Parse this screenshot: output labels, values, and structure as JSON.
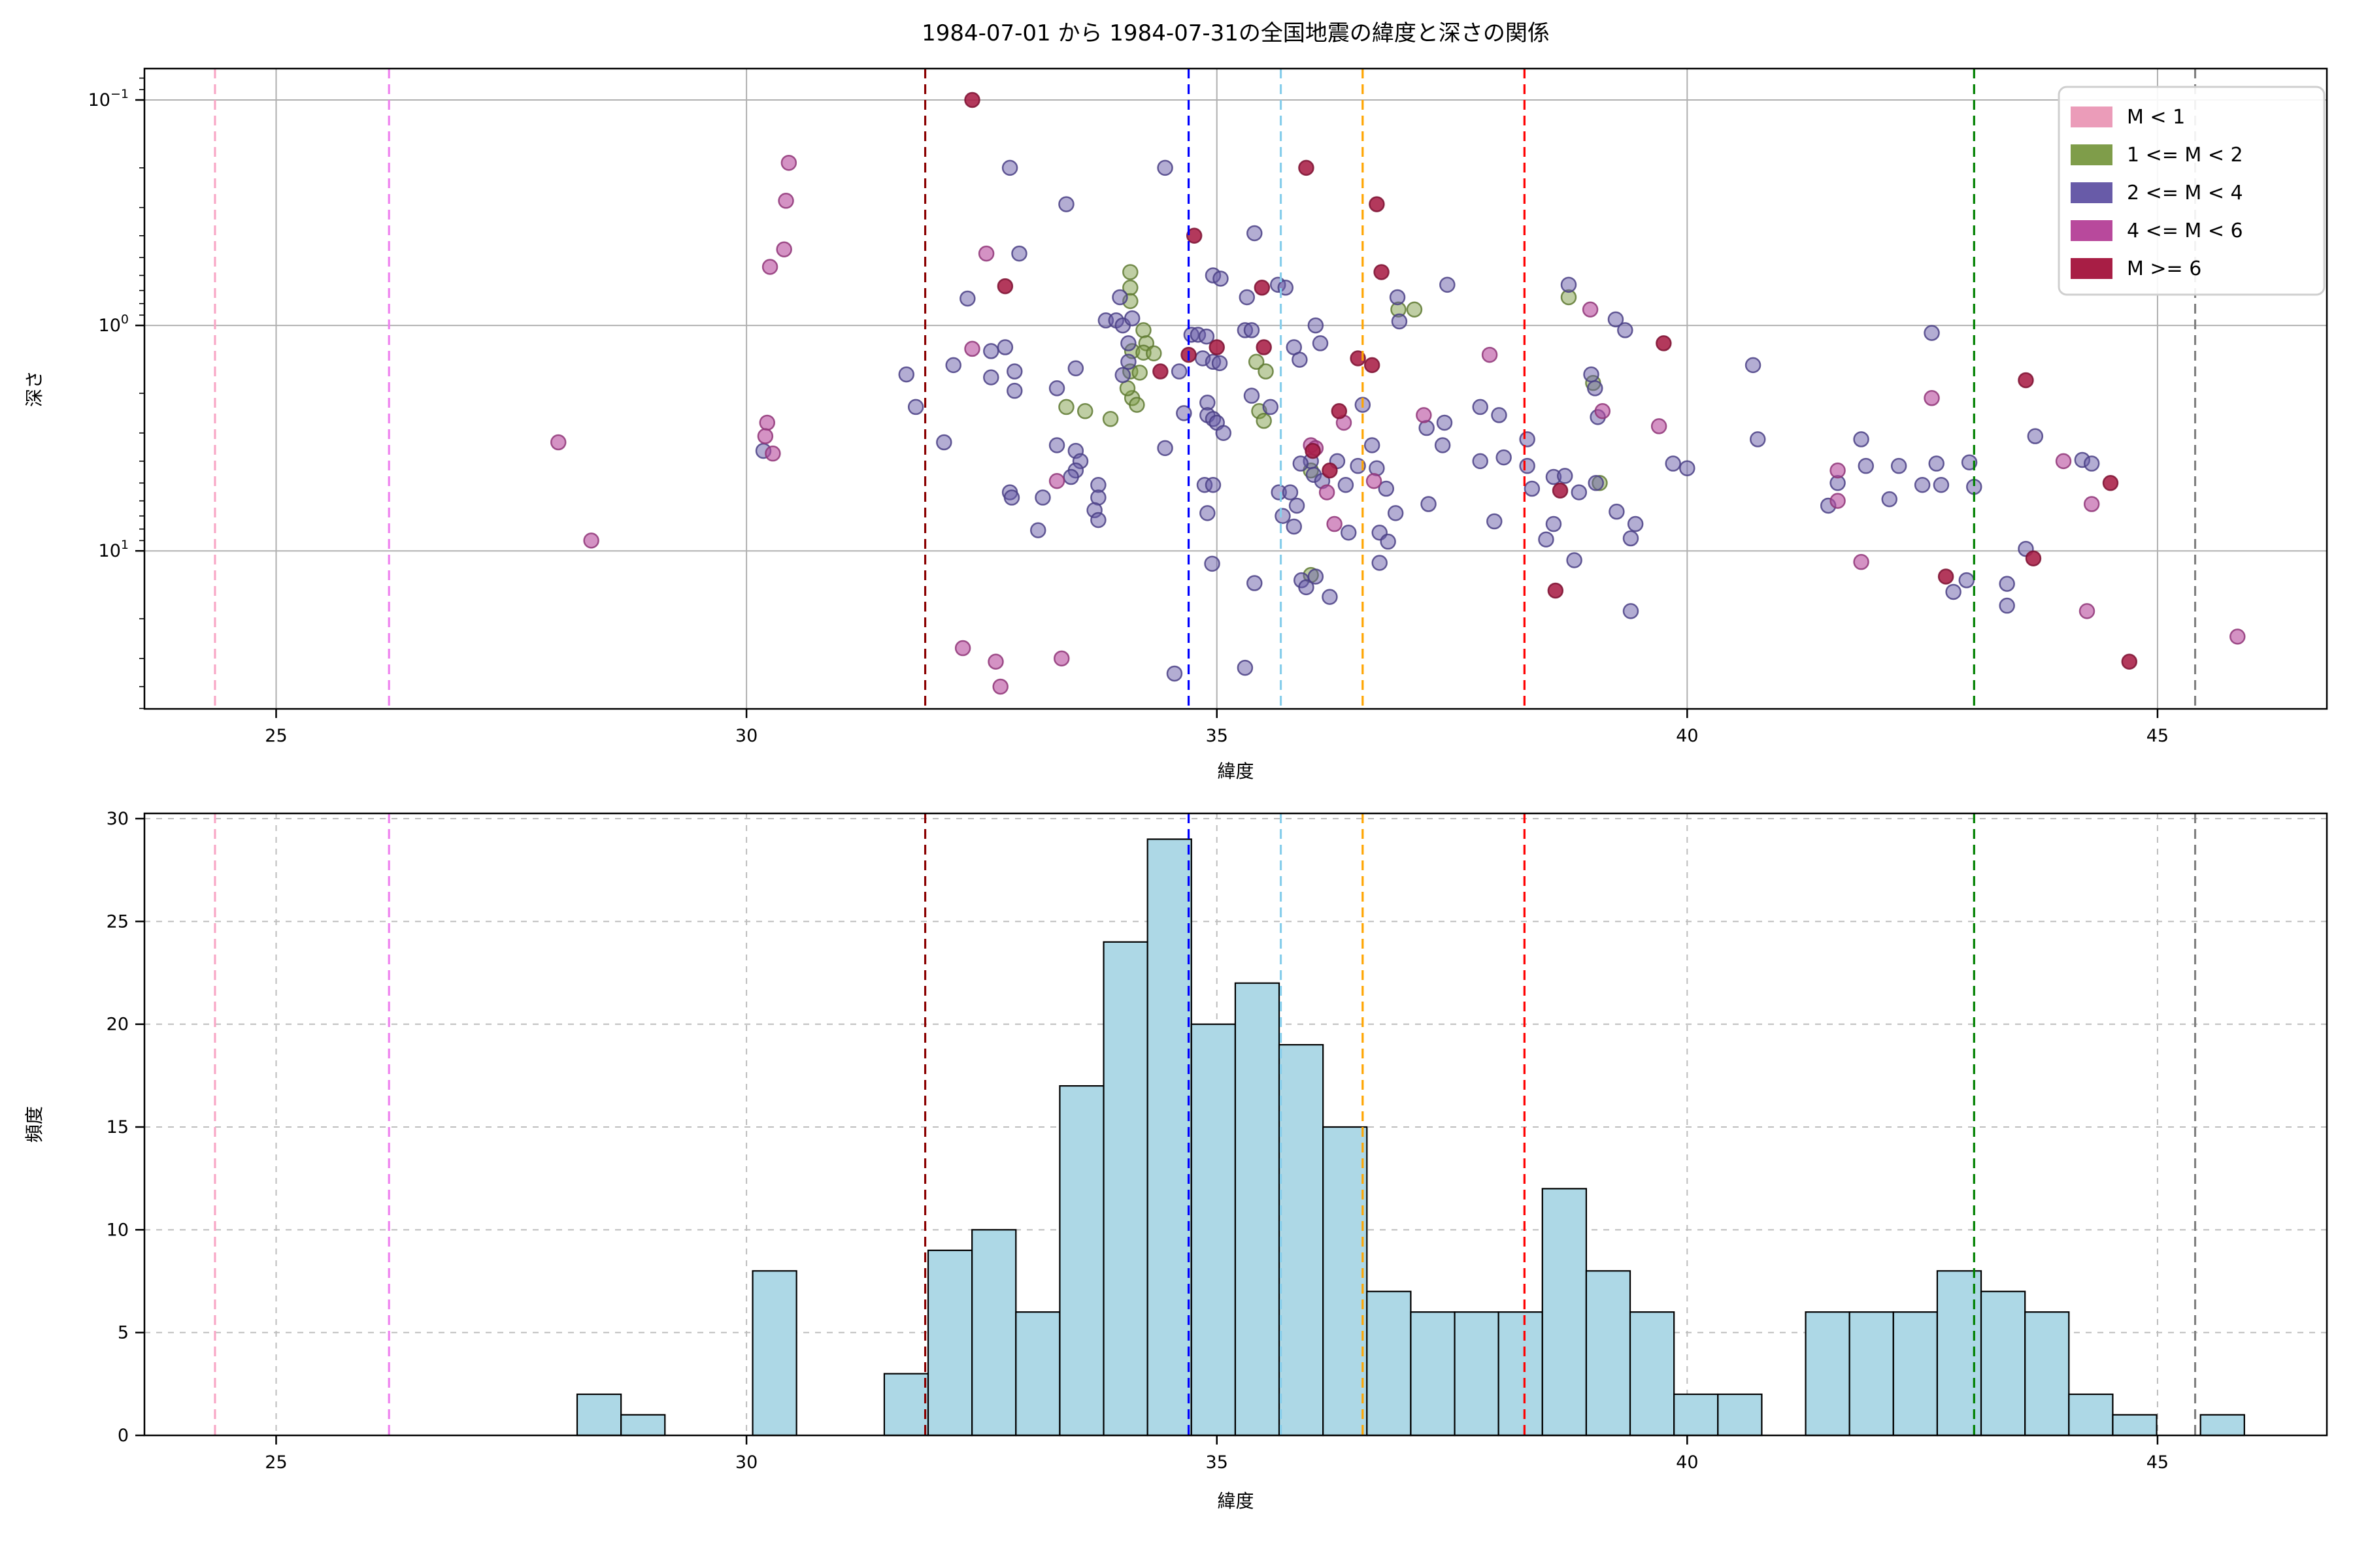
{
  "figure": {
    "title": "1984-07-01 から 1984-07-31の全国地震の緯度と深さの関係",
    "background": "#ffffff",
    "frame_color": "#000000",
    "grid_color_top": "#b0b0b0",
    "grid_color_bottom": "#bdbdbd"
  },
  "magnitude_classes": [
    {
      "label": "M < 1",
      "color": "#eb9cb9",
      "edge": "#d67fa4",
      "fill_opacity": 0.55
    },
    {
      "label": "1 <= M < 2",
      "color": "#7f9d4a",
      "edge": "#5f7a33",
      "fill_opacity": 0.5
    },
    {
      "label": "2 <= M < 4",
      "color": "#685ba8",
      "edge": "#4a3f85",
      "fill_opacity": 0.5
    },
    {
      "label": "4 <= M < 6",
      "color": "#b8499c",
      "edge": "#8f3578",
      "fill_opacity": 0.6
    },
    {
      "label": "M >= 6",
      "color": "#a81e45",
      "edge": "#7d1031",
      "fill_opacity": 0.88
    }
  ],
  "reference_lines": [
    {
      "lat": 24.35,
      "color": "#f8a8c6",
      "name": "pink-line"
    },
    {
      "lat": 26.2,
      "color": "#ee82ee",
      "name": "violet-line"
    },
    {
      "lat": 31.9,
      "color": "#8b0000",
      "name": "darkred-line"
    },
    {
      "lat": 34.7,
      "color": "#0000ff",
      "name": "blue-line"
    },
    {
      "lat": 35.68,
      "color": "#87ceeb",
      "name": "skyblue-line"
    },
    {
      "lat": 36.55,
      "color": "#ffa500",
      "name": "orange-line"
    },
    {
      "lat": 38.27,
      "color": "#ff0000",
      "name": "red-line"
    },
    {
      "lat": 43.05,
      "color": "#008000",
      "name": "green-line"
    },
    {
      "lat": 45.4,
      "color": "#808080",
      "name": "gray-line"
    }
  ],
  "chart_data": [
    {
      "type": "scatter",
      "title": "1984-07-01 から 1984-07-31の全国地震の緯度と深さの関係",
      "xlabel": "緯度",
      "ylabel": "深さ",
      "xlim": [
        23.6,
        46.8
      ],
      "xticks": [
        25,
        30,
        35,
        40,
        45
      ],
      "ylog_lim": [
        0.0726,
        50.2
      ],
      "yticks": [
        {
          "value": 0.1,
          "base": "10",
          "exp": "−1"
        },
        {
          "value": 1,
          "base": "10",
          "exp": "0"
        },
        {
          "value": 10,
          "base": "10",
          "exp": "1"
        }
      ],
      "y_axis_inverted_depth": true,
      "grid": "solid",
      "legend_position": "upper-right",
      "marker_radius": 11,
      "points_format": [
        "lat",
        "depth",
        "class_index"
      ],
      "points": [
        [
          28.0,
          3.3,
          3
        ],
        [
          28.35,
          9.0,
          3
        ],
        [
          30.45,
          0.19,
          3
        ],
        [
          30.42,
          0.28,
          3
        ],
        [
          30.4,
          0.46,
          3
        ],
        [
          30.25,
          0.55,
          3
        ],
        [
          30.22,
          2.7,
          3
        ],
        [
          30.2,
          3.1,
          3
        ],
        [
          30.18,
          3.6,
          2
        ],
        [
          30.28,
          3.7,
          3
        ],
        [
          32.4,
          0.1,
          4
        ],
        [
          32.8,
          0.2,
          2
        ],
        [
          32.55,
          0.48,
          3
        ],
        [
          32.9,
          0.48,
          2
        ],
        [
          32.75,
          0.67,
          4
        ],
        [
          32.35,
          0.76,
          2
        ],
        [
          32.4,
          1.27,
          3
        ],
        [
          32.75,
          1.25,
          2
        ],
        [
          31.7,
          1.65,
          2
        ],
        [
          32.2,
          1.5,
          2
        ],
        [
          31.8,
          2.3,
          2
        ],
        [
          32.1,
          3.3,
          2
        ],
        [
          32.8,
          5.5,
          2
        ],
        [
          32.82,
          5.8,
          2
        ],
        [
          33.1,
          8.1,
          2
        ],
        [
          32.6,
          1.3,
          2
        ],
        [
          32.6,
          1.7,
          2
        ],
        [
          32.85,
          1.6,
          2
        ],
        [
          32.85,
          1.95,
          2
        ],
        [
          32.3,
          27,
          3
        ],
        [
          32.65,
          31,
          3
        ],
        [
          32.7,
          40,
          3
        ],
        [
          33.35,
          30,
          3
        ],
        [
          33.4,
          0.29,
          2
        ],
        [
          33.3,
          3.4,
          2
        ],
        [
          33.5,
          3.6,
          2
        ],
        [
          33.55,
          4.0,
          2
        ],
        [
          33.5,
          4.4,
          2
        ],
        [
          33.45,
          4.7,
          2
        ],
        [
          33.3,
          4.9,
          3
        ],
        [
          33.15,
          5.8,
          2
        ],
        [
          33.74,
          5.1,
          2
        ],
        [
          33.74,
          5.8,
          2
        ],
        [
          33.7,
          6.6,
          2
        ],
        [
          33.74,
          7.3,
          2
        ],
        [
          33.5,
          1.55,
          2
        ],
        [
          33.3,
          1.9,
          2
        ],
        [
          33.4,
          2.3,
          1
        ],
        [
          33.6,
          2.4,
          1
        ],
        [
          33.87,
          2.6,
          1
        ],
        [
          34.1,
          2.1,
          1
        ],
        [
          34.05,
          1.9,
          1
        ],
        [
          34.15,
          2.25,
          1
        ],
        [
          34.08,
          0.58,
          1
        ],
        [
          34.08,
          0.68,
          1
        ],
        [
          34.08,
          0.78,
          1
        ],
        [
          34.22,
          1.05,
          1
        ],
        [
          34.25,
          1.2,
          1
        ],
        [
          34.1,
          1.3,
          1
        ],
        [
          34.22,
          1.32,
          1
        ],
        [
          34.33,
          1.33,
          1
        ],
        [
          34.08,
          1.6,
          1
        ],
        [
          34.18,
          1.62,
          1
        ],
        [
          33.97,
          0.75,
          2
        ],
        [
          33.82,
          0.95,
          2
        ],
        [
          33.93,
          0.95,
          2
        ],
        [
          34.0,
          1.0,
          2
        ],
        [
          34.1,
          0.93,
          2
        ],
        [
          34.06,
          1.2,
          2
        ],
        [
          34.06,
          1.45,
          2
        ],
        [
          34.0,
          1.66,
          2
        ],
        [
          34.4,
          1.6,
          4
        ],
        [
          34.7,
          1.35,
          4
        ],
        [
          35.0,
          1.25,
          4
        ],
        [
          34.6,
          1.6,
          2
        ],
        [
          34.45,
          3.5,
          2
        ],
        [
          34.76,
          0.4,
          4
        ],
        [
          34.45,
          0.2,
          2
        ],
        [
          34.96,
          0.6,
          2
        ],
        [
          35.04,
          0.62,
          2
        ],
        [
          34.73,
          1.1,
          2
        ],
        [
          34.8,
          1.1,
          2
        ],
        [
          34.89,
          1.12,
          2
        ],
        [
          34.85,
          1.4,
          2
        ],
        [
          34.96,
          1.45,
          2
        ],
        [
          35.03,
          1.47,
          2
        ],
        [
          34.9,
          2.2,
          2
        ],
        [
          34.65,
          2.45,
          2
        ],
        [
          34.9,
          2.5,
          2
        ],
        [
          34.96,
          2.6,
          2
        ],
        [
          35.0,
          2.7,
          2
        ],
        [
          35.07,
          3.0,
          2
        ],
        [
          34.87,
          5.1,
          2
        ],
        [
          34.96,
          5.1,
          2
        ],
        [
          34.9,
          6.8,
          2
        ],
        [
          34.95,
          11.4,
          2
        ],
        [
          34.55,
          35,
          2
        ],
        [
          35.32,
          0.75,
          2
        ],
        [
          35.3,
          1.05,
          2
        ],
        [
          35.37,
          1.05,
          2
        ],
        [
          35.48,
          0.68,
          4
        ],
        [
          35.5,
          1.25,
          4
        ],
        [
          35.42,
          1.45,
          1
        ],
        [
          35.52,
          1.6,
          1
        ],
        [
          35.4,
          0.39,
          2
        ],
        [
          35.3,
          33,
          2
        ],
        [
          35.4,
          13.9,
          2
        ],
        [
          35.37,
          2.05,
          2
        ],
        [
          35.57,
          2.3,
          2
        ],
        [
          35.45,
          2.4,
          1
        ],
        [
          35.5,
          2.65,
          1
        ],
        [
          35.66,
          5.5,
          2
        ],
        [
          35.78,
          5.5,
          2
        ],
        [
          35.85,
          6.3,
          2
        ],
        [
          35.7,
          7.0,
          2
        ],
        [
          35.82,
          7.8,
          2
        ],
        [
          35.65,
          0.66,
          2
        ],
        [
          35.73,
          0.68,
          2
        ],
        [
          35.82,
          1.25,
          2
        ],
        [
          35.88,
          1.42,
          2
        ],
        [
          36.05,
          1.0,
          2
        ],
        [
          36.1,
          1.2,
          2
        ],
        [
          36.0,
          3.4,
          3
        ],
        [
          36.05,
          3.5,
          3
        ],
        [
          36.02,
          3.6,
          4
        ],
        [
          36.2,
          4.4,
          4
        ],
        [
          36.0,
          4.0,
          2
        ],
        [
          36.0,
          4.4,
          1
        ],
        [
          35.89,
          4.1,
          2
        ],
        [
          36.03,
          4.6,
          2
        ],
        [
          36.12,
          4.9,
          2
        ],
        [
          36.28,
          4.0,
          2
        ],
        [
          36.37,
          5.1,
          2
        ],
        [
          36.5,
          4.2,
          2
        ],
        [
          36.65,
          3.4,
          2
        ],
        [
          36.7,
          4.3,
          2
        ],
        [
          36.8,
          5.3,
          2
        ],
        [
          36.67,
          4.9,
          3
        ],
        [
          36.17,
          5.5,
          3
        ],
        [
          36.25,
          7.6,
          3
        ],
        [
          36.4,
          8.3,
          2
        ],
        [
          36.73,
          8.3,
          2
        ],
        [
          36.82,
          9.1,
          2
        ],
        [
          35.9,
          13.5,
          2
        ],
        [
          35.95,
          14.5,
          2
        ],
        [
          36.05,
          13.0,
          2
        ],
        [
          36.0,
          12.8,
          1
        ],
        [
          36.2,
          16.0,
          2
        ],
        [
          36.73,
          11.3,
          2
        ],
        [
          35.95,
          0.2,
          4
        ],
        [
          36.7,
          0.29,
          4
        ],
        [
          36.3,
          2.4,
          4
        ],
        [
          36.55,
          2.25,
          2
        ],
        [
          36.35,
          2.7,
          3
        ],
        [
          36.5,
          1.4,
          4
        ],
        [
          36.65,
          1.5,
          4
        ],
        [
          36.75,
          0.58,
          4
        ],
        [
          36.9,
          6.8,
          2
        ],
        [
          37.45,
          0.66,
          2
        ],
        [
          36.92,
          0.75,
          2
        ],
        [
          36.94,
          0.96,
          2
        ],
        [
          36.93,
          0.85,
          1
        ],
        [
          37.1,
          0.85,
          1
        ],
        [
          37.2,
          2.5,
          3
        ],
        [
          37.42,
          2.7,
          2
        ],
        [
          37.23,
          2.85,
          2
        ],
        [
          37.4,
          3.4,
          2
        ],
        [
          37.8,
          2.3,
          2
        ],
        [
          38.0,
          2.5,
          2
        ],
        [
          37.8,
          4.0,
          2
        ],
        [
          38.05,
          3.85,
          2
        ],
        [
          37.9,
          1.35,
          3
        ],
        [
          37.25,
          6.2,
          2
        ],
        [
          37.95,
          7.4,
          2
        ],
        [
          38.3,
          3.2,
          2
        ],
        [
          38.3,
          4.2,
          2
        ],
        [
          38.35,
          5.3,
          2
        ],
        [
          38.58,
          4.7,
          2
        ],
        [
          38.7,
          4.65,
          2
        ],
        [
          38.65,
          5.4,
          4
        ],
        [
          38.85,
          5.5,
          2
        ],
        [
          38.5,
          8.9,
          2
        ],
        [
          38.58,
          7.6,
          2
        ],
        [
          38.6,
          15,
          4
        ],
        [
          38.8,
          11,
          2
        ],
        [
          38.74,
          0.66,
          2
        ],
        [
          38.74,
          0.75,
          1
        ],
        [
          38.97,
          0.85,
          3
        ],
        [
          39.24,
          0.94,
          2
        ],
        [
          39.34,
          1.05,
          2
        ],
        [
          39.75,
          1.2,
          4
        ],
        [
          38.98,
          1.65,
          2
        ],
        [
          39.0,
          1.8,
          1
        ],
        [
          39.02,
          1.9,
          2
        ],
        [
          39.1,
          2.4,
          3
        ],
        [
          39.05,
          2.55,
          2
        ],
        [
          39.7,
          2.8,
          3
        ],
        [
          39.03,
          5.0,
          2
        ],
        [
          39.07,
          5.0,
          1
        ],
        [
          39.25,
          6.7,
          2
        ],
        [
          39.45,
          7.6,
          2
        ],
        [
          39.4,
          8.8,
          2
        ],
        [
          39.4,
          18.5,
          2
        ],
        [
          39.85,
          4.1,
          2
        ],
        [
          40.0,
          4.3,
          2
        ],
        [
          40.7,
          1.5,
          2
        ],
        [
          40.75,
          3.2,
          2
        ],
        [
          41.5,
          6.3,
          2
        ],
        [
          41.6,
          4.4,
          3
        ],
        [
          41.6,
          6.0,
          3
        ],
        [
          41.6,
          5.0,
          2
        ],
        [
          41.85,
          3.2,
          2
        ],
        [
          41.9,
          4.2,
          2
        ],
        [
          42.15,
          5.9,
          2
        ],
        [
          42.25,
          4.2,
          2
        ],
        [
          42.5,
          5.1,
          2
        ],
        [
          42.7,
          5.1,
          2
        ],
        [
          43.05,
          5.2,
          2
        ],
        [
          42.65,
          4.1,
          2
        ],
        [
          43.0,
          4.05,
          2
        ],
        [
          42.6,
          1.08,
          2
        ],
        [
          43.6,
          1.75,
          4
        ],
        [
          42.6,
          2.1,
          3
        ],
        [
          41.85,
          11.2,
          3
        ],
        [
          42.75,
          13,
          4
        ],
        [
          42.97,
          13.5,
          2
        ],
        [
          42.83,
          15.2,
          2
        ],
        [
          43.4,
          14.0,
          2
        ],
        [
          43.4,
          17.5,
          2
        ],
        [
          44.25,
          18.5,
          3
        ],
        [
          43.6,
          9.8,
          2
        ],
        [
          43.68,
          10.8,
          4
        ],
        [
          43.7,
          3.1,
          2
        ],
        [
          44.0,
          4.0,
          3
        ],
        [
          44.2,
          3.95,
          2
        ],
        [
          44.3,
          4.1,
          2
        ],
        [
          44.5,
          5.0,
          4
        ],
        [
          44.3,
          6.2,
          3
        ],
        [
          44.7,
          31,
          4
        ],
        [
          45.85,
          24,
          3
        ]
      ]
    },
    {
      "type": "histogram",
      "xlabel": "緯度",
      "ylabel": "頻度",
      "xlim": [
        23.6,
        46.8
      ],
      "xticks": [
        25,
        30,
        35,
        40,
        45
      ],
      "ylim": [
        0,
        30.3
      ],
      "yticks": [
        0,
        5,
        10,
        15,
        20,
        25,
        30
      ],
      "grid": "dashed",
      "bar_color": "#add8e6",
      "bar_edge_color": "#000000",
      "bin_start": 28.2,
      "bin_width": 0.4664,
      "counts": [
        2,
        1,
        0,
        0,
        8,
        0,
        0,
        3,
        9,
        10,
        6,
        17,
        24,
        29,
        20,
        22,
        19,
        15,
        7,
        6,
        6,
        6,
        12,
        8,
        6,
        2,
        2,
        0,
        6,
        6,
        6,
        8,
        7,
        6,
        2,
        1,
        0,
        1
      ]
    }
  ]
}
